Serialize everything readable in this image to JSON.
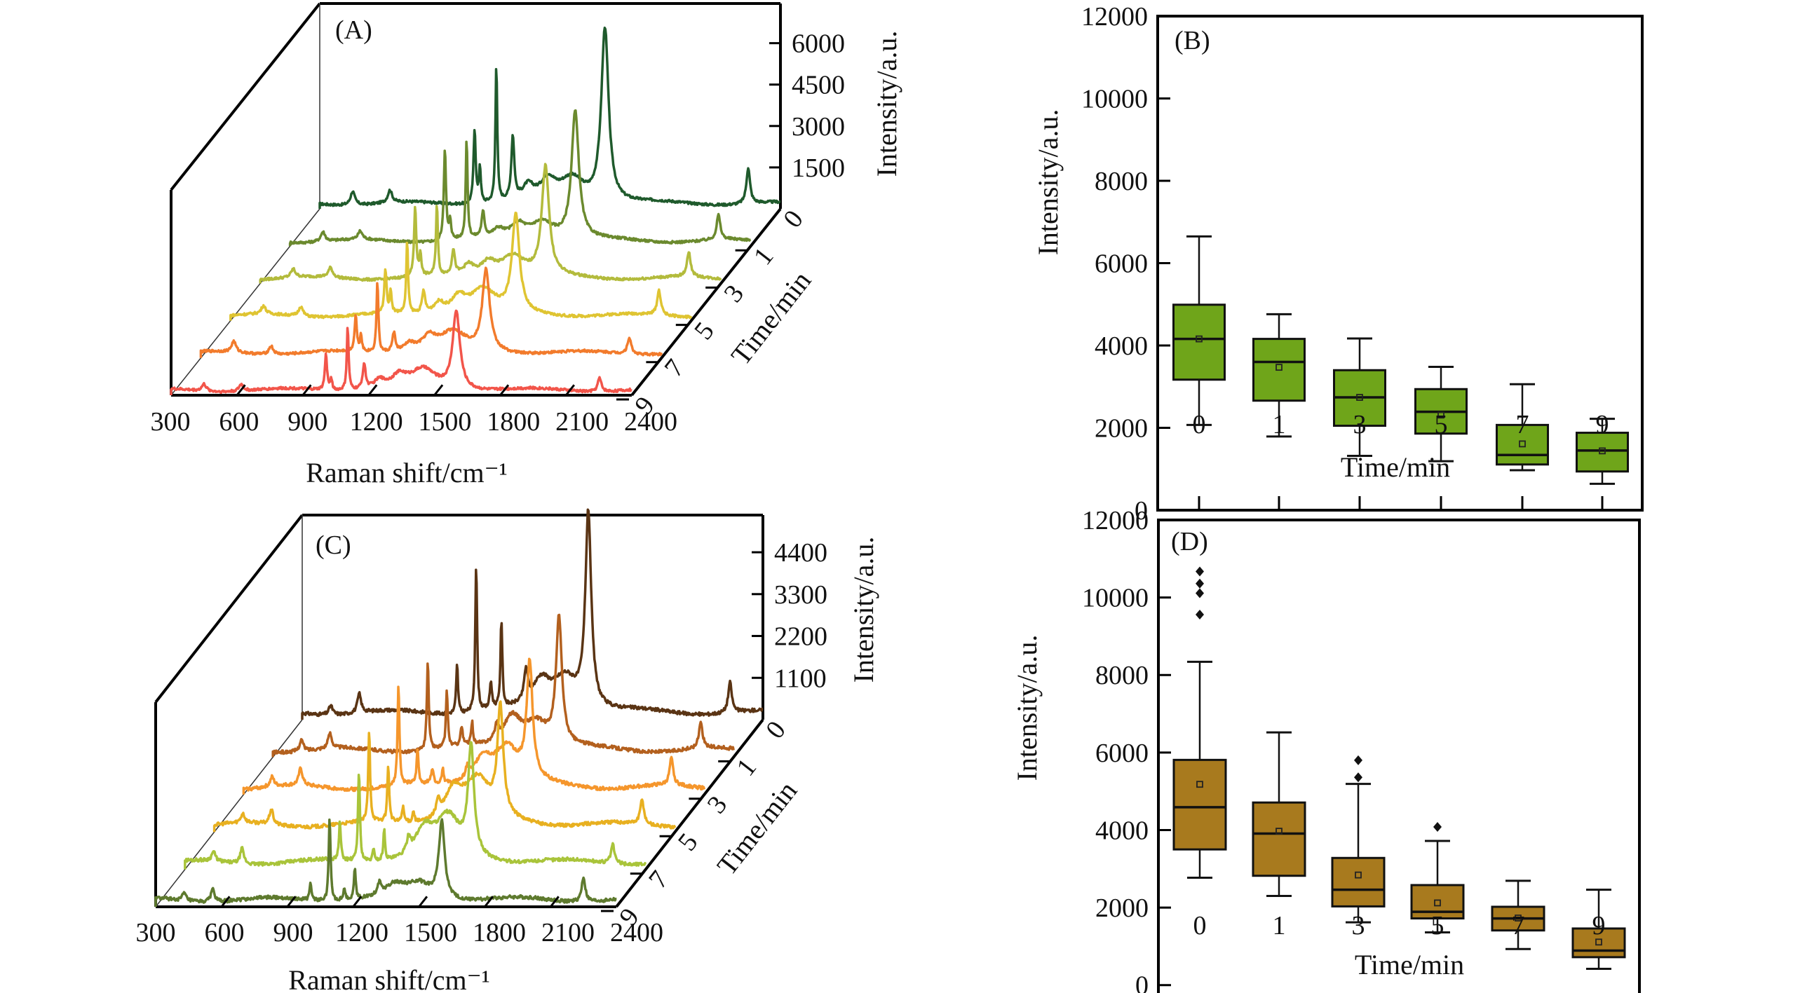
{
  "figure": {
    "panels": [
      "(A)",
      "(B)",
      "(C)",
      "(D)"
    ]
  },
  "chart_data": [
    {
      "id": "A",
      "type": "line",
      "subtype": "3d-waterfall",
      "panel_label": "(A)",
      "title": "",
      "xlabel": "Raman shift/cm⁻¹",
      "ylabel": "Intensity/a.u.",
      "zlabel": "Time/min",
      "xlim": [
        300,
        2400
      ],
      "ylim": [
        0,
        7500
      ],
      "x_ticks": [
        "300",
        "600",
        "900",
        "1200",
        "1500",
        "1800",
        "2100",
        "2400"
      ],
      "y_ticks": [
        "6000",
        "4500",
        "3000",
        "1500"
      ],
      "z_ticks": [
        "0",
        "1",
        "3",
        "5",
        "7",
        "9"
      ],
      "baseline": 300,
      "peaks_cm": [
        450,
        620,
        1006,
        1030,
        1105,
        1180,
        1250,
        1340,
        1450,
        1600,
        2253
      ],
      "peak_widths": [
        12,
        12,
        6,
        5,
        5,
        8,
        30,
        40,
        70,
        20,
        10
      ],
      "series": [
        {
          "name": "0 min",
          "color": "#1f5a2c",
          "peak_heights": [
            500,
            450,
            2700,
            1300,
            5000,
            2300,
            500,
            700,
            900,
            6300,
            1300
          ]
        },
        {
          "name": "1 min",
          "color": "#6b8a2e",
          "peak_heights": [
            350,
            300,
            3300,
            700,
            3600,
            900,
            300,
            500,
            700,
            4600,
            900
          ]
        },
        {
          "name": "3 min",
          "color": "#b3bb3c",
          "peak_heights": [
            300,
            350,
            2500,
            800,
            2600,
            900,
            400,
            500,
            800,
            3900,
            900
          ]
        },
        {
          "name": "5 min",
          "color": "#dfc432",
          "peak_heights": [
            300,
            350,
            1600,
            800,
            2600,
            800,
            400,
            600,
            900,
            3500,
            900
          ]
        },
        {
          "name": "7 min",
          "color": "#f27b2c",
          "peak_heights": [
            400,
            300,
            1300,
            600,
            2600,
            700,
            300,
            500,
            700,
            2900,
            600
          ]
        },
        {
          "name": "9 min",
          "color": "#f2554a",
          "peak_heights": [
            250,
            250,
            1300,
            400,
            2300,
            900,
            300,
            400,
            700,
            2800,
            500
          ]
        }
      ]
    },
    {
      "id": "B",
      "type": "box",
      "panel_label": "(B)",
      "title": "",
      "xlabel": "Time/min",
      "ylabel": "Intensity/a.u.",
      "ylim": [
        0,
        12000
      ],
      "y_ticks": [
        "0",
        "2000",
        "4000",
        "6000",
        "8000",
        "10000",
        "12000"
      ],
      "categories": [
        "0",
        "1",
        "3",
        "5",
        "7",
        "9"
      ],
      "fill_color": "#6fa51a",
      "boxes": [
        {
          "whisker_low": 2070,
          "q1": 3170,
          "median": 4160,
          "mean": 4160,
          "q3": 4990,
          "whisker_high": 6650,
          "outliers": []
        },
        {
          "whisker_low": 1790,
          "q1": 2660,
          "median": 3600,
          "mean": 3470,
          "q3": 4160,
          "whisker_high": 4760,
          "outliers": []
        },
        {
          "whisker_low": 1320,
          "q1": 2050,
          "median": 2740,
          "mean": 2740,
          "q3": 3400,
          "whisker_high": 4170,
          "outliers": []
        },
        {
          "whisker_low": 1190,
          "q1": 1860,
          "median": 2390,
          "mean": 2310,
          "q3": 2940,
          "whisker_high": 3480,
          "outliers": []
        },
        {
          "whisker_low": 970,
          "q1": 1110,
          "median": 1340,
          "mean": 1610,
          "q3": 2070,
          "whisker_high": 3060,
          "outliers": []
        },
        {
          "whisker_low": 640,
          "q1": 940,
          "median": 1450,
          "mean": 1440,
          "q3": 1880,
          "whisker_high": 2220,
          "outliers": []
        }
      ]
    },
    {
      "id": "C",
      "type": "line",
      "subtype": "3d-waterfall",
      "panel_label": "(C)",
      "title": "",
      "xlabel": "Raman shift/cm⁻¹",
      "ylabel": "Intensity/a.u.",
      "zlabel": "Time/min",
      "xlim": [
        300,
        2400
      ],
      "ylim": [
        0,
        5300
      ],
      "x_ticks": [
        "300",
        "600",
        "900",
        "1200",
        "1500",
        "1800",
        "2100",
        "2400"
      ],
      "y_ticks": [
        "4400",
        "3300",
        "2200",
        "1100"
      ],
      "z_ticks": [
        "0",
        "1",
        "3",
        "5",
        "7",
        "9"
      ],
      "baseline": 300,
      "peaks_cm": [
        430,
        560,
        1006,
        1093,
        1160,
        1208,
        1320,
        1390,
        1500,
        1604,
        2250
      ],
      "peak_widths": [
        10,
        10,
        5,
        5,
        6,
        5,
        10,
        50,
        70,
        16,
        10
      ],
      "series": [
        {
          "name": "0 min",
          "color": "#5a3414",
          "peak_heights": [
            250,
            500,
            1300,
            3900,
            700,
            2300,
            800,
            700,
            900,
            5100,
            800
          ]
        },
        {
          "name": "1 min",
          "color": "#b3601e",
          "peak_heights": [
            300,
            400,
            2400,
            1500,
            500,
            600,
            400,
            800,
            700,
            3300,
            700
          ]
        },
        {
          "name": "3 min",
          "color": "#f5962c",
          "peak_heights": [
            250,
            450,
            2700,
            900,
            400,
            400,
            300,
            700,
            1000,
            3000,
            700
          ]
        },
        {
          "name": "5 min",
          "color": "#e8b020",
          "peak_heights": [
            250,
            400,
            2400,
            1500,
            400,
            300,
            400,
            800,
            1100,
            2800,
            650
          ]
        },
        {
          "name": "7 min",
          "color": "#a9c43a",
          "peak_heights": [
            250,
            400,
            1000,
            2400,
            300,
            800,
            400,
            700,
            1100,
            2800,
            500
          ]
        },
        {
          "name": "9 min",
          "color": "#5e7a2e",
          "peak_heights": [
            200,
            350,
            500,
            2200,
            300,
            800,
            300,
            300,
            400,
            2000,
            650
          ]
        }
      ]
    },
    {
      "id": "D",
      "type": "box",
      "panel_label": "(D)",
      "title": "",
      "xlabel": "Time/min",
      "ylabel": "Intensity/a.u.",
      "ylim": [
        -1000,
        12000
      ],
      "y_ticks": [
        "0",
        "2000",
        "4000",
        "6000",
        "8000",
        "10000",
        "12000"
      ],
      "categories": [
        "0",
        "1",
        "3",
        "5",
        "7",
        "9"
      ],
      "fill_color": "#a87a1e",
      "boxes": [
        {
          "whisker_low": 2770,
          "q1": 3500,
          "median": 4590,
          "mean": 5180,
          "q3": 5810,
          "whisker_high": 8340,
          "outliers": [
            9560,
            10110,
            10360,
            10670
          ]
        },
        {
          "whisker_low": 2300,
          "q1": 2820,
          "median": 3910,
          "mean": 3970,
          "q3": 4710,
          "whisker_high": 6520,
          "outliers": []
        },
        {
          "whisker_low": 1620,
          "q1": 2030,
          "median": 2460,
          "mean": 2840,
          "q3": 3280,
          "whisker_high": 5190,
          "outliers": [
            5360,
            5800
          ]
        },
        {
          "whisker_low": 1360,
          "q1": 1720,
          "median": 1890,
          "mean": 2120,
          "q3": 2580,
          "whisker_high": 3720,
          "outliers": [
            4080
          ]
        },
        {
          "whisker_low": 930,
          "q1": 1410,
          "median": 1720,
          "mean": 1730,
          "q3": 2020,
          "whisker_high": 2690,
          "outliers": []
        },
        {
          "whisker_low": 420,
          "q1": 720,
          "median": 890,
          "mean": 1110,
          "q3": 1460,
          "whisker_high": 2460,
          "outliers": []
        }
      ]
    }
  ]
}
